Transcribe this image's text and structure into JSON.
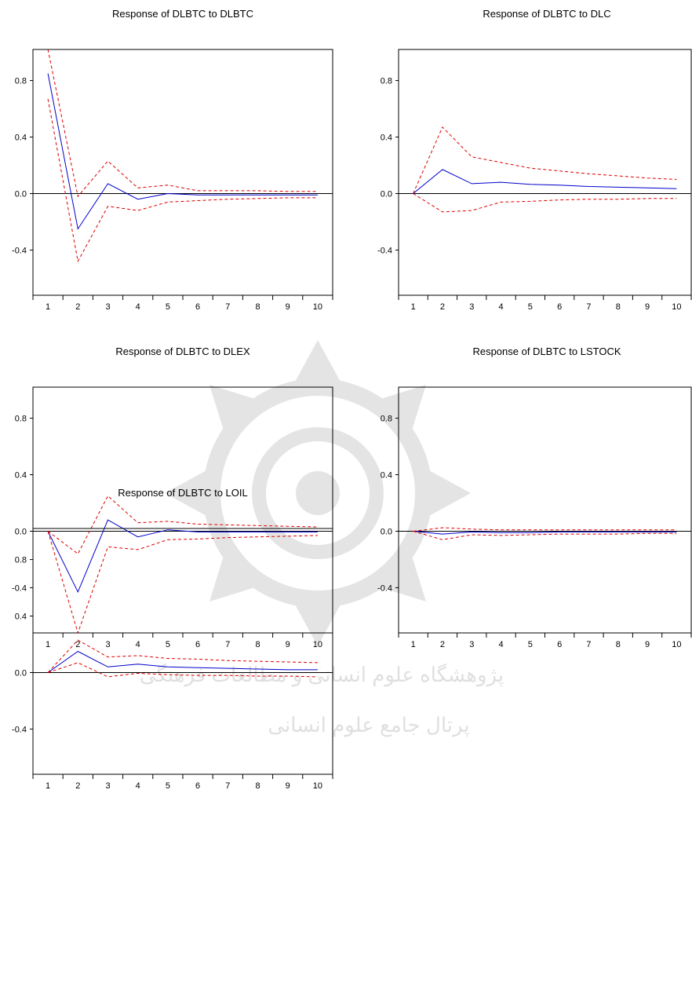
{
  "colors": {
    "response_line": "#0000cc",
    "confidence_band": "#dd0000",
    "axis": "#000000",
    "background": "#ffffff"
  },
  "watermark": {
    "line1": "پژوهشگاه علوم انسانی و مطالعات فرهنگی",
    "line2": "پرتال جامع علوم انسانی"
  },
  "chart_data": [
    {
      "type": "line",
      "title": "Response of DLBTC to DLBTC",
      "x": [
        1,
        2,
        3,
        4,
        5,
        6,
        7,
        8,
        9,
        10
      ],
      "x_tick_labels": [
        "1",
        "2",
        "3",
        "4",
        "5",
        "6",
        "7",
        "8",
        "9",
        "10"
      ],
      "y_tick_values": [
        0.8,
        0.4,
        0.0,
        -0.4
      ],
      "y_tick_labels": [
        "0.8",
        "0.4",
        "0.0",
        "-0.4"
      ],
      "ylim": [
        -0.72,
        1.02
      ],
      "zero_line": true,
      "grid": false,
      "series": [
        {
          "role": "response",
          "style": "solid",
          "color": "#0000cc",
          "values": [
            0.85,
            -0.25,
            0.07,
            -0.04,
            0.0,
            -0.01,
            -0.01,
            -0.01,
            -0.01,
            -0.01
          ]
        },
        {
          "role": "upper_band",
          "style": "dashed",
          "color": "#dd0000",
          "values": [
            1.02,
            -0.02,
            0.23,
            0.04,
            0.06,
            0.02,
            0.02,
            0.02,
            0.015,
            0.015
          ]
        },
        {
          "role": "lower_band",
          "style": "dashed",
          "color": "#dd0000",
          "values": [
            0.67,
            -0.48,
            -0.09,
            -0.12,
            -0.06,
            -0.05,
            -0.04,
            -0.035,
            -0.03,
            -0.03
          ]
        }
      ]
    },
    {
      "type": "line",
      "title": "Response of DLBTC to DLC",
      "x": [
        1,
        2,
        3,
        4,
        5,
        6,
        7,
        8,
        9,
        10
      ],
      "x_tick_labels": [
        "1",
        "2",
        "3",
        "4",
        "5",
        "6",
        "7",
        "8",
        "9",
        "10"
      ],
      "y_tick_values": [
        0.8,
        0.4,
        0.0,
        -0.4
      ],
      "y_tick_labels": [
        "0.8",
        "0.4",
        "0.0",
        "-0.4"
      ],
      "ylim": [
        -0.72,
        1.02
      ],
      "zero_line": true,
      "grid": false,
      "series": [
        {
          "role": "response",
          "style": "solid",
          "color": "#0000cc",
          "values": [
            0.0,
            0.17,
            0.07,
            0.08,
            0.065,
            0.06,
            0.05,
            0.045,
            0.04,
            0.035
          ]
        },
        {
          "role": "upper_band",
          "style": "dashed",
          "color": "#dd0000",
          "values": [
            0.0,
            0.47,
            0.26,
            0.22,
            0.18,
            0.16,
            0.14,
            0.125,
            0.11,
            0.1
          ]
        },
        {
          "role": "lower_band",
          "style": "dashed",
          "color": "#dd0000",
          "values": [
            0.0,
            -0.13,
            -0.12,
            -0.06,
            -0.055,
            -0.045,
            -0.04,
            -0.04,
            -0.035,
            -0.035
          ]
        }
      ]
    },
    {
      "type": "line",
      "title": "Response of DLBTC to DLEX",
      "x": [
        1,
        2,
        3,
        4,
        5,
        6,
        7,
        8,
        9,
        10
      ],
      "x_tick_labels": [
        "1",
        "2",
        "3",
        "4",
        "5",
        "6",
        "7",
        "8",
        "9",
        "10"
      ],
      "y_tick_values": [
        0.8,
        0.4,
        0.0,
        -0.4
      ],
      "y_tick_labels": [
        "0.8",
        "0.4",
        "0.0",
        "-0.4"
      ],
      "ylim": [
        -0.72,
        1.02
      ],
      "zero_line": true,
      "grid": false,
      "series": [
        {
          "role": "response",
          "style": "solid",
          "color": "#0000cc",
          "values": [
            0.0,
            -0.43,
            0.08,
            -0.04,
            0.01,
            -0.005,
            -0.005,
            -0.005,
            -0.005,
            -0.005
          ]
        },
        {
          "role": "upper_band",
          "style": "dashed",
          "color": "#dd0000",
          "values": [
            0.0,
            -0.16,
            0.25,
            0.06,
            0.07,
            0.05,
            0.045,
            0.04,
            0.035,
            0.03
          ]
        },
        {
          "role": "lower_band",
          "style": "dashed",
          "color": "#dd0000",
          "values": [
            0.0,
            -0.72,
            -0.11,
            -0.13,
            -0.06,
            -0.055,
            -0.045,
            -0.04,
            -0.035,
            -0.03
          ]
        }
      ]
    },
    {
      "type": "line",
      "title": "Response of DLBTC to LSTOCK",
      "x": [
        1,
        2,
        3,
        4,
        5,
        6,
        7,
        8,
        9,
        10
      ],
      "x_tick_labels": [
        "1",
        "2",
        "3",
        "4",
        "5",
        "6",
        "7",
        "8",
        "9",
        "10"
      ],
      "y_tick_values": [
        0.8,
        0.4,
        0.0,
        -0.4
      ],
      "y_tick_labels": [
        "0.8",
        "0.4",
        "0.0",
        "-0.4"
      ],
      "ylim": [
        -0.72,
        1.02
      ],
      "zero_line": true,
      "grid": false,
      "series": [
        {
          "role": "response",
          "style": "solid",
          "color": "#0000cc",
          "values": [
            0.0,
            -0.02,
            -0.005,
            -0.01,
            -0.01,
            -0.005,
            -0.005,
            -0.005,
            -0.005,
            -0.005
          ]
        },
        {
          "role": "upper_band",
          "style": "dashed",
          "color": "#dd0000",
          "values": [
            0.0,
            0.025,
            0.015,
            0.01,
            0.01,
            0.01,
            0.01,
            0.01,
            0.01,
            0.01
          ]
        },
        {
          "role": "lower_band",
          "style": "dashed",
          "color": "#dd0000",
          "values": [
            0.0,
            -0.06,
            -0.025,
            -0.03,
            -0.025,
            -0.02,
            -0.02,
            -0.02,
            -0.015,
            -0.015
          ]
        }
      ]
    },
    {
      "type": "line",
      "title": "Response of DLBTC to LOIL",
      "x": [
        1,
        2,
        3,
        4,
        5,
        6,
        7,
        8,
        9,
        10
      ],
      "x_tick_labels": [
        "1",
        "2",
        "3",
        "4",
        "5",
        "6",
        "7",
        "8",
        "9",
        "10"
      ],
      "y_tick_values": [
        0.8,
        0.4,
        0.0,
        -0.4
      ],
      "y_tick_labels": [
        "0.8",
        "0.4",
        "0.0",
        "-0.4"
      ],
      "ylim": [
        -0.72,
        1.02
      ],
      "zero_line": true,
      "grid": false,
      "series": [
        {
          "role": "response",
          "style": "solid",
          "color": "#0000cc",
          "values": [
            0.0,
            0.15,
            0.04,
            0.06,
            0.04,
            0.035,
            0.03,
            0.025,
            0.02,
            0.02
          ]
        },
        {
          "role": "upper_band",
          "style": "dashed",
          "color": "#dd0000",
          "values": [
            0.0,
            0.23,
            0.11,
            0.12,
            0.1,
            0.095,
            0.085,
            0.08,
            0.075,
            0.07
          ]
        },
        {
          "role": "lower_band",
          "style": "dashed",
          "color": "#dd0000",
          "values": [
            0.0,
            0.07,
            -0.03,
            -0.005,
            -0.015,
            -0.02,
            -0.02,
            -0.025,
            -0.025,
            -0.03
          ]
        }
      ]
    }
  ]
}
